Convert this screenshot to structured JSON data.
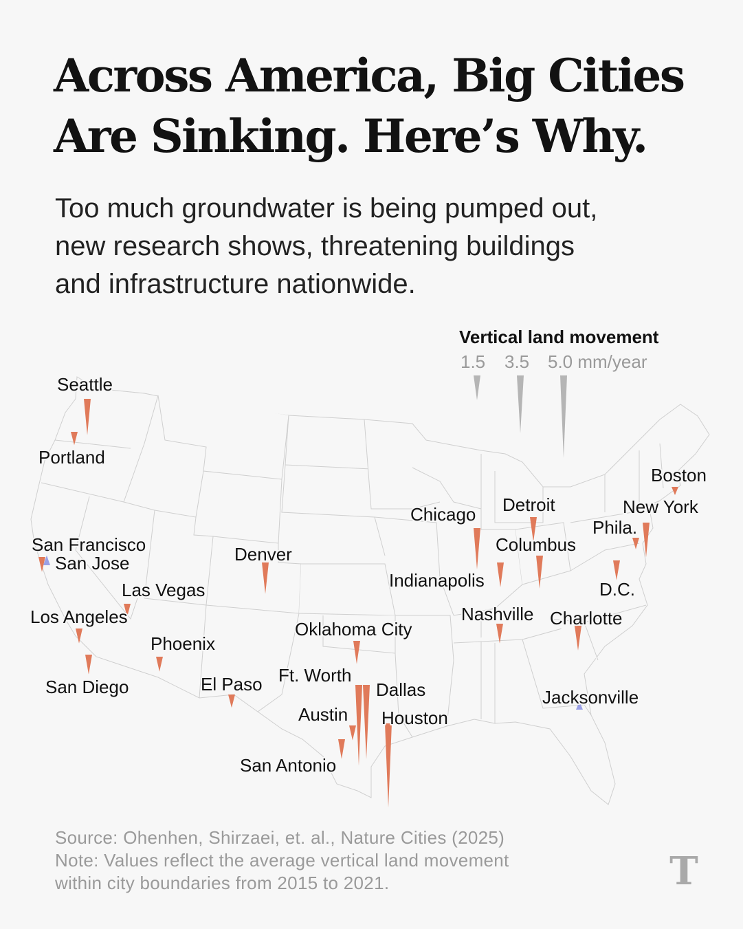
{
  "headline": {
    "line1": "Across America, Big Cities",
    "line2": "Are Sinking. Here’s Why."
  },
  "dek": {
    "line1": "Too much groundwater is being pumped out,",
    "line2": "new research shows, threatening buildings",
    "line3": "and infrastructure nationwide."
  },
  "legend": {
    "title": "Vertical land movement",
    "values": [
      "1.5",
      "3.5",
      "5.0 mm/year"
    ],
    "magnitudes": [
      1.5,
      3.5,
      5.0
    ],
    "color": "#b5b5b5"
  },
  "colors": {
    "sinking": "#e07a5a",
    "uplift": "#9aa0e6",
    "state_border": "#cfcfcf",
    "background": "#f7f7f7"
  },
  "cities": [
    {
      "name": "Seattle",
      "direction": "sinking",
      "rate": 2.2
    },
    {
      "name": "Portland",
      "direction": "sinking",
      "rate": 0.8
    },
    {
      "name": "San Francisco",
      "direction": "sinking",
      "rate": 0.9
    },
    {
      "name": "San Jose",
      "direction": "uplift",
      "rate": 0.6
    },
    {
      "name": "Las Vegas",
      "direction": "sinking",
      "rate": 0.8
    },
    {
      "name": "Los Angeles",
      "direction": "sinking",
      "rate": 0.9
    },
    {
      "name": "San Diego",
      "direction": "sinking",
      "rate": 1.2
    },
    {
      "name": "Phoenix",
      "direction": "sinking",
      "rate": 0.9
    },
    {
      "name": "Denver",
      "direction": "sinking",
      "rate": 1.9
    },
    {
      "name": "El Paso",
      "direction": "sinking",
      "rate": 0.8
    },
    {
      "name": "Oklahoma City",
      "direction": "sinking",
      "rate": 1.4
    },
    {
      "name": "Ft. Worth",
      "direction": "sinking",
      "rate": 4.9
    },
    {
      "name": "Dallas",
      "direction": "sinking",
      "rate": 4.5
    },
    {
      "name": "Austin",
      "direction": "sinking",
      "rate": 0.9
    },
    {
      "name": "San Antonio",
      "direction": "sinking",
      "rate": 1.2
    },
    {
      "name": "Houston",
      "direction": "sinking",
      "rate": 5.1
    },
    {
      "name": "Chicago",
      "direction": "sinking",
      "rate": 2.5
    },
    {
      "name": "Detroit",
      "direction": "sinking",
      "rate": 1.5
    },
    {
      "name": "Columbus",
      "direction": "sinking",
      "rate": 2.0
    },
    {
      "name": "Indianapolis",
      "direction": "sinking",
      "rate": 1.5
    },
    {
      "name": "Nashville",
      "direction": "sinking",
      "rate": 1.2
    },
    {
      "name": "Charlotte",
      "direction": "sinking",
      "rate": 1.5
    },
    {
      "name": "Jacksonville",
      "direction": "uplift",
      "rate": 0.5
    },
    {
      "name": "D.C.",
      "direction": "sinking",
      "rate": 1.2
    },
    {
      "name": "Phila.",
      "direction": "sinking",
      "rate": 0.7
    },
    {
      "name": "New York",
      "direction": "sinking",
      "rate": 2.1
    },
    {
      "name": "Boston",
      "direction": "sinking",
      "rate": 0.5
    }
  ],
  "source": {
    "line1": "Source: Ohenhen, Shirzaei, et. al., Nature Cities (2025)",
    "line2": "Note: Values reflect the average vertical land movement",
    "line3": "within city boundaries from 2015 to 2021."
  },
  "logo_text": "T"
}
